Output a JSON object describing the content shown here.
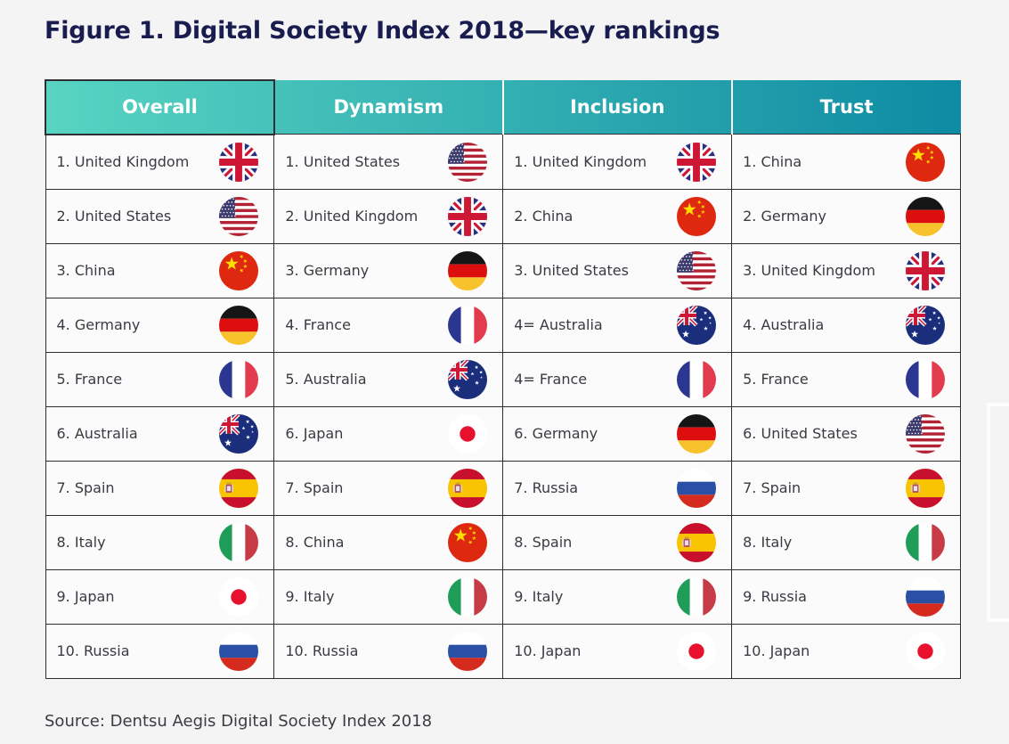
{
  "figure": {
    "title": "Figure 1. Digital Society Index 2018—key rankings",
    "source": "Source: Dentsu Aegis Digital Society Index 2018"
  },
  "colors": {
    "title_text": "#191C4F",
    "header_text": "#FFFFFF",
    "header_gradient_start": "#58D4C1",
    "header_gradient_end": "#0E8BA3",
    "cell_background": "#FBFBFB",
    "grid_border": "#2E2E35",
    "page_background": "#F5F4F5",
    "body_text": "#3A3A42"
  },
  "flag_icons": {
    "uk": "united-kingdom-flag-icon",
    "us": "united-states-flag-icon",
    "cn": "china-flag-icon",
    "de": "germany-flag-icon",
    "fr": "france-flag-icon",
    "au": "australia-flag-icon",
    "es": "spain-flag-icon",
    "it": "italy-flag-icon",
    "jp": "japan-flag-icon",
    "ru": "russia-flag-icon"
  },
  "table": {
    "columns": [
      {
        "header": "Overall",
        "entries": [
          {
            "label": "1. United Kingdom",
            "flag": "uk"
          },
          {
            "label": "2. United States",
            "flag": "us"
          },
          {
            "label": "3. China",
            "flag": "cn"
          },
          {
            "label": "4. Germany",
            "flag": "de"
          },
          {
            "label": "5. France",
            "flag": "fr"
          },
          {
            "label": "6. Australia",
            "flag": "au"
          },
          {
            "label": "7. Spain",
            "flag": "es"
          },
          {
            "label": "8. Italy",
            "flag": "it"
          },
          {
            "label": "9. Japan",
            "flag": "jp"
          },
          {
            "label": "10. Russia",
            "flag": "ru"
          }
        ]
      },
      {
        "header": "Dynamism",
        "entries": [
          {
            "label": "1. United States",
            "flag": "us"
          },
          {
            "label": "2. United Kingdom",
            "flag": "uk"
          },
          {
            "label": "3. Germany",
            "flag": "de"
          },
          {
            "label": "4. France",
            "flag": "fr"
          },
          {
            "label": "5. Australia",
            "flag": "au"
          },
          {
            "label": "6. Japan",
            "flag": "jp"
          },
          {
            "label": "7. Spain",
            "flag": "es"
          },
          {
            "label": "8. China",
            "flag": "cn"
          },
          {
            "label": "9. Italy",
            "flag": "it"
          },
          {
            "label": "10. Russia",
            "flag": "ru"
          }
        ]
      },
      {
        "header": "Inclusion",
        "entries": [
          {
            "label": "1. United Kingdom",
            "flag": "uk"
          },
          {
            "label": "2. China",
            "flag": "cn"
          },
          {
            "label": "3. United States",
            "flag": "us"
          },
          {
            "label": "4= Australia",
            "flag": "au"
          },
          {
            "label": "4= France",
            "flag": "fr"
          },
          {
            "label": "6. Germany",
            "flag": "de"
          },
          {
            "label": "7. Russia",
            "flag": "ru"
          },
          {
            "label": "8. Spain",
            "flag": "es"
          },
          {
            "label": "9. Italy",
            "flag": "it"
          },
          {
            "label": "10. Japan",
            "flag": "jp"
          }
        ]
      },
      {
        "header": "Trust",
        "entries": [
          {
            "label": "1. China",
            "flag": "cn"
          },
          {
            "label": "2. Germany",
            "flag": "de"
          },
          {
            "label": "3. United Kingdom",
            "flag": "uk"
          },
          {
            "label": "4. Australia",
            "flag": "au"
          },
          {
            "label": "5. France",
            "flag": "fr"
          },
          {
            "label": "6. United States",
            "flag": "us"
          },
          {
            "label": "7. Spain",
            "flag": "es"
          },
          {
            "label": "8. Italy",
            "flag": "it"
          },
          {
            "label": "9. Russia",
            "flag": "ru"
          },
          {
            "label": "10. Japan",
            "flag": "jp"
          }
        ]
      }
    ]
  }
}
